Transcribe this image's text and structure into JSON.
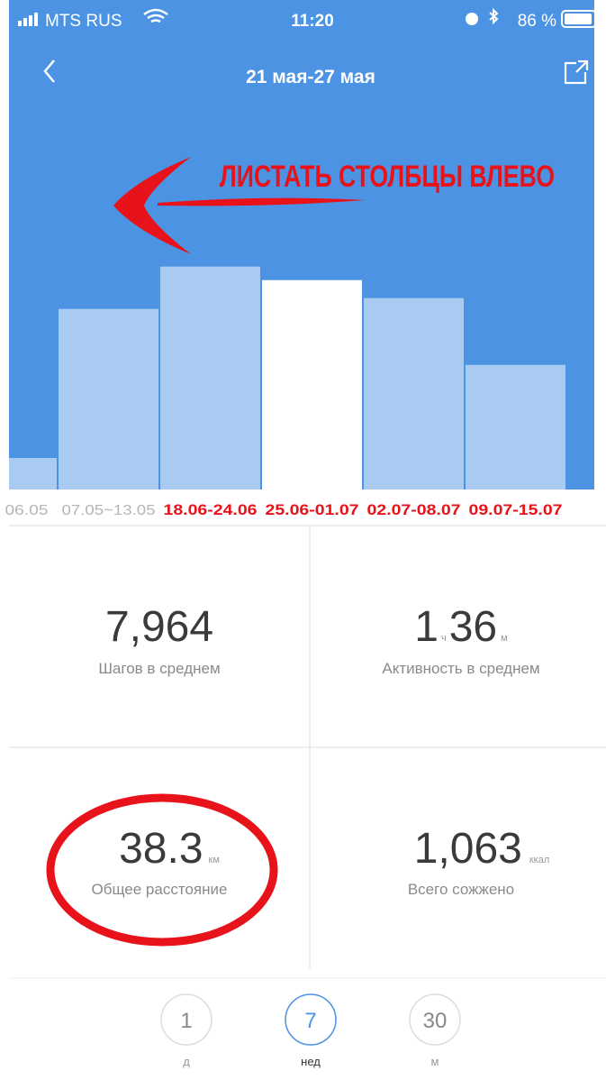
{
  "status_bar": {
    "carrier": "MTS RUS",
    "time": "11:20",
    "battery": "86 %"
  },
  "header": {
    "title": "21 мая-27 мая"
  },
  "annotation": "ЛИСТАТЬ СТОЛБЦЫ ВЛЕВО",
  "chart_data": {
    "type": "bar",
    "categories": [
      "06.05",
      "07.05~13.05",
      "18.06-24.06",
      "25.06-01.07",
      "02.07-08.07",
      "09.07-15.07"
    ],
    "values": [
      1200,
      6870,
      8480,
      7964,
      7280,
      4740
    ],
    "ylim": [
      0,
      12000
    ],
    "color": "#a9cbf2",
    "selected_color": "#ffffff",
    "selected": 3
  },
  "stats": [
    {
      "value": "7,964",
      "label": "Шагов в среднем"
    },
    {
      "value": "1",
      "unit": "ч",
      "value2": "36",
      "unit2": "м",
      "label": "Активность в среднем"
    },
    {
      "value": "38.3",
      "unit": "км",
      "label": "Общее расстояние"
    },
    {
      "value": "1,063",
      "unit": "ккал",
      "label": "Всего сожжено"
    }
  ],
  "tabs": [
    {
      "number": "1",
      "label": "д"
    },
    {
      "number": "7",
      "label": "нед"
    },
    {
      "number": "30",
      "label": "м"
    }
  ]
}
